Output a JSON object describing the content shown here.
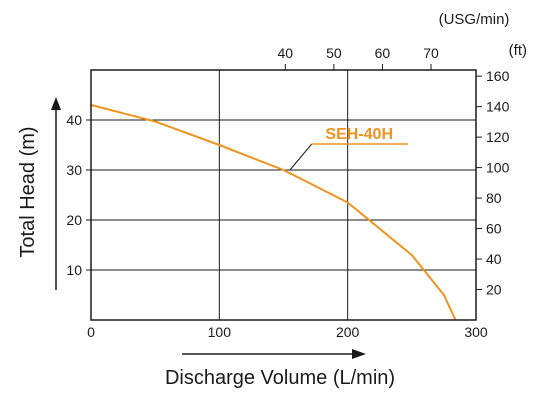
{
  "chart_data": {
    "type": "line",
    "title": "",
    "xlabel": "Discharge Volume (L/min)",
    "ylabel": "Total Head (m)",
    "xlim": [
      0,
      300
    ],
    "ylim": [
      0,
      50
    ],
    "x_ticks": [
      "0",
      "100",
      "200",
      "300"
    ],
    "y_ticks": [
      "10",
      "20",
      "30",
      "40"
    ],
    "secondary_x": {
      "unit_label": "(USG/min)",
      "ticks": [
        "40",
        "50",
        "60",
        "70"
      ],
      "tick_values": [
        40,
        50,
        60,
        70
      ],
      "lpm_per_unit": 3.785
    },
    "secondary_y": {
      "unit_label": "(ft)",
      "ticks": [
        "20",
        "40",
        "60",
        "80",
        "100",
        "120",
        "140",
        "160"
      ],
      "tick_values": [
        20,
        40,
        60,
        80,
        100,
        120,
        140,
        160
      ],
      "m_per_unit": 0.3048
    },
    "grid": true,
    "series": [
      {
        "name": "SEH-40H",
        "x": [
          0,
          50,
          100,
          150,
          200,
          250,
          275,
          284
        ],
        "y": [
          43,
          39.7,
          35,
          30,
          23.5,
          13,
          5,
          0
        ]
      }
    ],
    "colors": {
      "series": "#f0931e",
      "frame": "#1a1a1a",
      "grid": "#1a1a1a"
    }
  }
}
